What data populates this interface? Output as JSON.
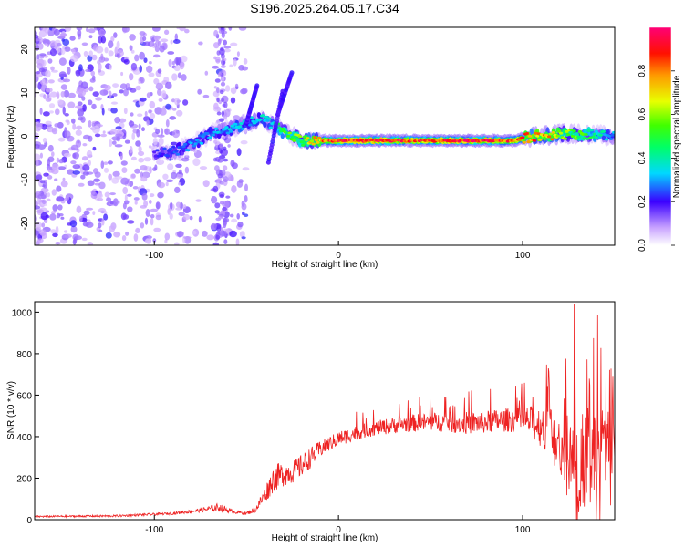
{
  "figure": {
    "title": "S196.2025.264.05.17.C34"
  },
  "chart_data": [
    {
      "type": "heatmap",
      "name": "spectrogram",
      "xlabel": "Height of straight line (km)",
      "ylabel": "Frequency (Hz)",
      "xlim": [
        -165,
        150
      ],
      "ylim": [
        -25,
        25
      ],
      "xticks": [
        -100,
        0,
        100
      ],
      "xtick_labels": [
        "-100",
        "0",
        "100"
      ],
      "yticks": [
        -20,
        -10,
        0,
        10,
        20
      ],
      "ytick_labels": [
        "-20",
        "-10",
        "0",
        "10",
        "20"
      ],
      "ridge": {
        "x": [
          -100,
          -90,
          -80,
          -70,
          -60,
          -50,
          -42,
          -35,
          -30,
          -20,
          -10,
          0,
          20,
          40,
          60,
          80,
          95,
          105,
          120,
          135,
          150
        ],
        "freq": [
          -4,
          -3.5,
          -2,
          0.5,
          1.5,
          3,
          4,
          2.5,
          1,
          -1,
          -1,
          -1,
          -1,
          -1,
          -1,
          -1,
          -1,
          0,
          0.5,
          0.5,
          0
        ],
        "amplitude": [
          0.2,
          0.25,
          0.3,
          0.3,
          0.35,
          0.35,
          0.35,
          0.4,
          0.5,
          0.6,
          0.8,
          0.95,
          0.95,
          0.9,
          0.9,
          0.95,
          0.85,
          0.85,
          0.7,
          0.5,
          0.3
        ]
      },
      "noise_region_x": [
        -165,
        -50
      ],
      "colorbar": {
        "label": "Normalized spectral amplitude",
        "range": [
          0,
          1
        ],
        "ticks": [
          0.0,
          0.2,
          0.4,
          0.6,
          0.8
        ],
        "tick_labels": [
          "0.0",
          "0.2",
          "0.4",
          "0.6",
          "0.8"
        ],
        "colors": [
          "#ffffff",
          "#ad6bff",
          "#4b00ff",
          "#00e0ff",
          "#00ff44",
          "#e8ff00",
          "#ff8800",
          "#ff0000",
          "#ff0088"
        ]
      }
    },
    {
      "type": "line",
      "name": "snr",
      "xlabel": "Height of straight line (km)",
      "ylabel": "SNR (10 * v/v)",
      "xlim": [
        -165,
        150
      ],
      "ylim": [
        0,
        1050
      ],
      "xticks": [
        -100,
        0,
        100
      ],
      "xtick_labels": [
        "-100",
        "0",
        "100"
      ],
      "yticks": [
        0,
        200,
        400,
        600,
        800,
        1000
      ],
      "ytick_labels": [
        "0",
        "200",
        "400",
        "600",
        "800",
        "1000"
      ],
      "color": "#ee2222",
      "envelope": {
        "x": [
          -165,
          -120,
          -90,
          -75,
          -65,
          -58,
          -50,
          -45,
          -40,
          -35,
          -30,
          -25,
          -20,
          -15,
          -10,
          0,
          10,
          20,
          30,
          40,
          50,
          60,
          70,
          80,
          90,
          100,
          105,
          110,
          115,
          120,
          125,
          130,
          135,
          140,
          145,
          150
        ],
        "base": [
          15,
          18,
          30,
          45,
          60,
          40,
          30,
          50,
          120,
          200,
          220,
          230,
          260,
          300,
          340,
          390,
          420,
          440,
          455,
          465,
          470,
          470,
          465,
          470,
          480,
          480,
          470,
          450,
          420,
          380,
          300,
          250,
          300,
          330,
          350,
          380
        ],
        "spread": [
          8,
          10,
          12,
          20,
          40,
          20,
          15,
          30,
          80,
          130,
          120,
          110,
          110,
          100,
          80,
          70,
          70,
          70,
          80,
          85,
          90,
          100,
          110,
          110,
          115,
          120,
          160,
          200,
          250,
          330,
          420,
          500,
          480,
          430,
          380,
          300
        ]
      }
    }
  ]
}
